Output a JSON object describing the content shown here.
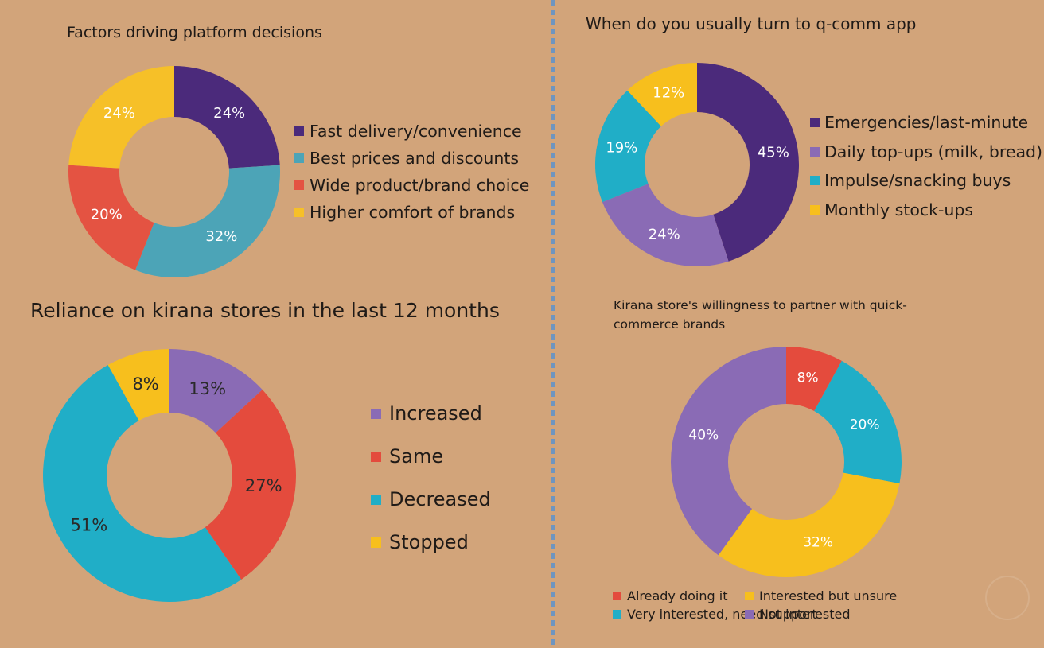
{
  "colors": {
    "background": "#d2a47a",
    "divider": "#6f95bf",
    "dark_purple": "#4b2a7b",
    "light_purple": "#8a6bb5",
    "teal": "#3fa5b8",
    "cyan": "#20aec7",
    "red": "#e44b3d",
    "yellow": "#f7bf1d"
  },
  "chart_data": [
    {
      "id": "platform",
      "type": "pie",
      "donut": true,
      "title": "Factors driving platform decisions",
      "label_color": "#ffffff",
      "slices": [
        {
          "label": "Fast delivery/convenience",
          "value": 24,
          "display": "24%",
          "color": "#4b2a7b"
        },
        {
          "label": "Best prices and discounts",
          "value": 32,
          "display": "32%",
          "color": "#4ca4b7"
        },
        {
          "label": "Wide product/brand choice",
          "value": 20,
          "display": "20%",
          "color": "#e45342"
        },
        {
          "label": "Higher comfort of brands",
          "value": 24,
          "display": "24%",
          "color": "#f6c028"
        }
      ]
    },
    {
      "id": "qcomm",
      "type": "pie",
      "donut": true,
      "title": "When do you usually turn to q-comm app",
      "label_color": "#ffffff",
      "slices": [
        {
          "label": "Emergencies/last-minute",
          "value": 45,
          "display": "45%",
          "color": "#4b2a7b"
        },
        {
          "label": "Daily top-ups (milk, bread)",
          "value": 24,
          "display": "24%",
          "color": "#8a6bb5"
        },
        {
          "label": "Impulse/snacking buys",
          "value": 19,
          "display": "19%",
          "color": "#20aec7"
        },
        {
          "label": "Monthly stock-ups",
          "value": 12,
          "display": "12%",
          "color": "#f7bf1d"
        }
      ]
    },
    {
      "id": "kirana",
      "type": "pie",
      "donut": true,
      "title": "Reliance on kirana stores in the last 12 months",
      "label_color": "#2a2a2a",
      "slices": [
        {
          "label": "Increased",
          "value": 13,
          "display": "13%",
          "color": "#8a6bb5"
        },
        {
          "label": "Same",
          "value": 27,
          "display": "27%",
          "color": "#e44b3d"
        },
        {
          "label": "Decreased",
          "value": 51,
          "display": "51%",
          "color": "#20aec7"
        },
        {
          "label": "Stopped",
          "value": 8,
          "display": "8%",
          "color": "#f7bf1d"
        }
      ]
    },
    {
      "id": "partner",
      "type": "pie",
      "donut": true,
      "title": "Kirana store's willingness to partner with quick-commerce brands",
      "label_color": "#ffffff",
      "slices": [
        {
          "label": "Already doing it",
          "value": 8,
          "display": "8%",
          "color": "#e44b3d"
        },
        {
          "label": "Very interested, need support",
          "value": 20,
          "display": "20%",
          "color": "#20aec7"
        },
        {
          "label": "Interested but unsure",
          "value": 32,
          "display": "32%",
          "color": "#f7bf1d"
        },
        {
          "label": "Not interested",
          "value": 40,
          "display": "40%",
          "color": "#8a6bb5"
        }
      ]
    }
  ]
}
